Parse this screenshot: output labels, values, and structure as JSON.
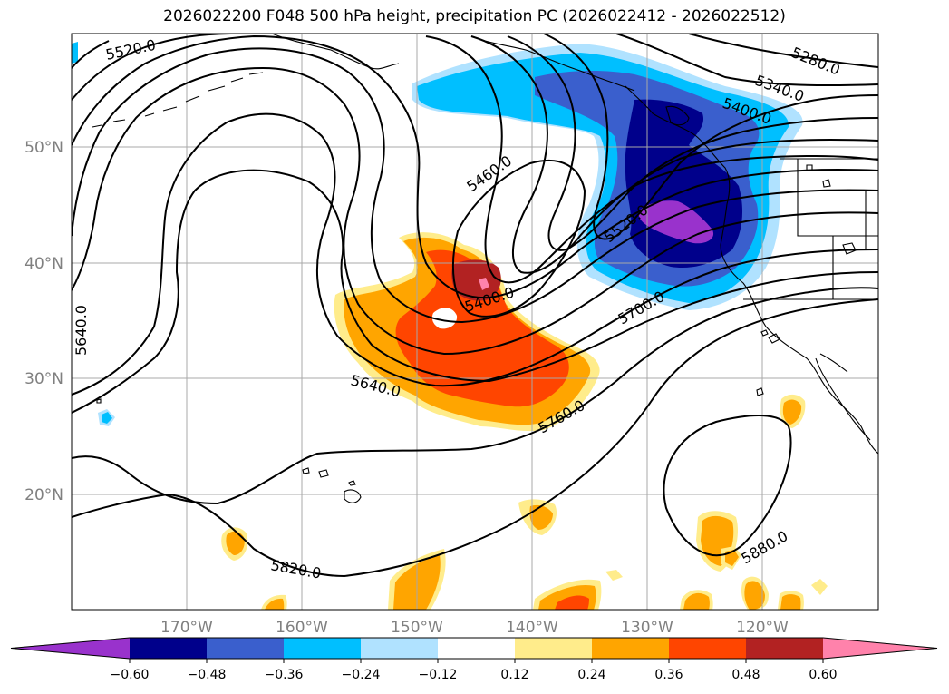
{
  "title": "2026022200 F048 500 hPa height, precipitation PC (2026022412 - 2026022512)",
  "map": {
    "lat_labels": [
      "50°N",
      "40°N",
      "30°N",
      "20°N"
    ],
    "lon_labels": [
      "170°W",
      "160°W",
      "150°W",
      "140°W",
      "130°W",
      "120°W"
    ],
    "grid": true,
    "lon_range": [
      -180,
      -110
    ],
    "lat_range": [
      10,
      60
    ],
    "contour_labels": [
      "5520.0",
      "5280.0",
      "5340.0",
      "5400.0",
      "5460.0",
      "5520.0",
      "5400.0",
      "5700.0",
      "5640.0",
      "5640.0",
      "5760.0",
      "5820.0",
      "5880.0"
    ]
  },
  "colorbar": {
    "tick_labels": [
      "−0.60",
      "−0.48",
      "−0.36",
      "−0.24",
      "−0.12",
      "0.12",
      "0.24",
      "0.36",
      "0.48",
      "0.60"
    ],
    "colors": [
      "#9932CC",
      "#00008B",
      "#3A5FCD",
      "#00BFFF",
      "#B0E2FF",
      "#FFFFFF",
      "#FFEC8B",
      "#FFA500",
      "#FF4500",
      "#B22222",
      "#FF82AB"
    ],
    "extend": "both"
  }
}
